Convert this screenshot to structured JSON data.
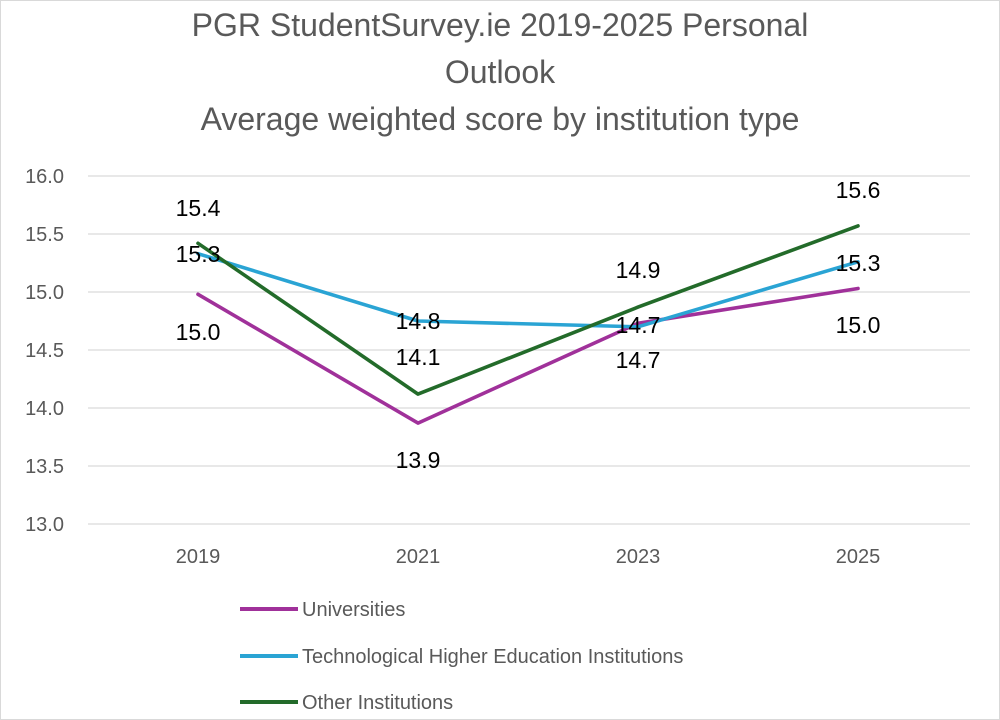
{
  "chart_data": {
    "type": "line",
    "title": "PGR StudentSurvey.ie 2019-2025 Personal Outlook",
    "subtitle": "Average weighted score by institution type",
    "title_lines": [
      "PGR StudentSurvey.ie 2019-2025 Personal",
      "Outlook",
      "Average weighted score by institution type"
    ],
    "categories": [
      "2019",
      "2021",
      "2023",
      "2025"
    ],
    "ylim": [
      13.0,
      16.0
    ],
    "yticks": [
      "13.0",
      "13.5",
      "14.0",
      "14.5",
      "15.0",
      "15.5",
      "16.0"
    ],
    "grid": true,
    "legend_position": "bottom",
    "series": [
      {
        "name": "Universities",
        "color": "#a0319a",
        "values": [
          14.98,
          13.87,
          14.73,
          15.03
        ],
        "labels": [
          "15.0",
          "13.9",
          "14.7",
          "15.0"
        ]
      },
      {
        "name": "Technological Higher Education Institutions",
        "color": "#2aa4d4",
        "values": [
          15.33,
          14.75,
          14.7,
          15.26
        ],
        "labels": [
          "15.3",
          "14.8",
          "14.7",
          "15.3"
        ]
      },
      {
        "name": "Other Institutions",
        "color": "#236b2a",
        "values": [
          15.42,
          14.12,
          14.87,
          15.57
        ],
        "labels": [
          "15.4",
          "14.1",
          "14.9",
          "15.6"
        ]
      }
    ]
  }
}
